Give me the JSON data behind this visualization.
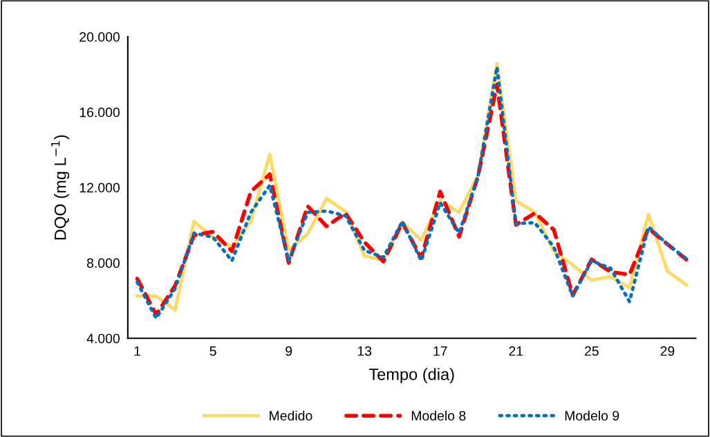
{
  "chart_data": {
    "type": "line",
    "xlabel": "Tempo (dia)",
    "ylabel": "DQO (mg L$^{−1}$)",
    "x": [
      1,
      2,
      3,
      4,
      5,
      6,
      7,
      8,
      9,
      10,
      11,
      12,
      13,
      14,
      15,
      16,
      17,
      18,
      19,
      20,
      21,
      22,
      23,
      24,
      25,
      26,
      27,
      28,
      29,
      30
    ],
    "series": [
      {
        "name": "Medido",
        "color": "#ffd966",
        "line_style": "solid",
        "values": [
          6240,
          6240,
          5500,
          10200,
          9360,
          8840,
          10200,
          13760,
          8660,
          9540,
          11410,
          10720,
          8370,
          8150,
          10170,
          9210,
          11300,
          10680,
          12660,
          18570,
          11300,
          10680,
          8620,
          7890,
          7080,
          7270,
          6680,
          10570,
          7560,
          6830
        ]
      },
      {
        "name": "Modelo 8",
        "color": "#ff0000",
        "line_style": "dashed",
        "values": [
          7160,
          5250,
          6790,
          9470,
          9650,
          8620,
          11780,
          12700,
          8000,
          11010,
          9940,
          10640,
          9100,
          8070,
          10130,
          8260,
          11780,
          9390,
          12600,
          17470,
          10020,
          10640,
          9760,
          6280,
          8180,
          7520,
          7380,
          9830,
          8990,
          8180
        ]
      },
      {
        "name": "Modelo 9",
        "color": "#0070c0",
        "line_style": "dotted",
        "values": [
          6970,
          5060,
          6640,
          9580,
          9360,
          8110,
          10680,
          12110,
          8110,
          10680,
          10750,
          10500,
          8660,
          8290,
          10200,
          8110,
          11190,
          9580,
          12600,
          18390,
          10090,
          10130,
          8840,
          6240,
          8110,
          7710,
          5940,
          9910,
          8990,
          8220
        ]
      }
    ],
    "xlim": [
      0.5,
      30.5
    ],
    "ylim": [
      4000,
      20000
    ],
    "xticks": [
      1,
      5,
      9,
      13,
      17,
      21,
      25,
      29
    ],
    "yticks": [
      {
        "value": 4000,
        "label": "4.000"
      },
      {
        "value": 8000,
        "label": "8.000"
      },
      {
        "value": 12000,
        "label": "12.000"
      },
      {
        "value": 16000,
        "label": "16.000"
      },
      {
        "value": 20000,
        "label": "20.000"
      }
    ],
    "grid": false,
    "legend": "bottom",
    "marker": "none"
  }
}
